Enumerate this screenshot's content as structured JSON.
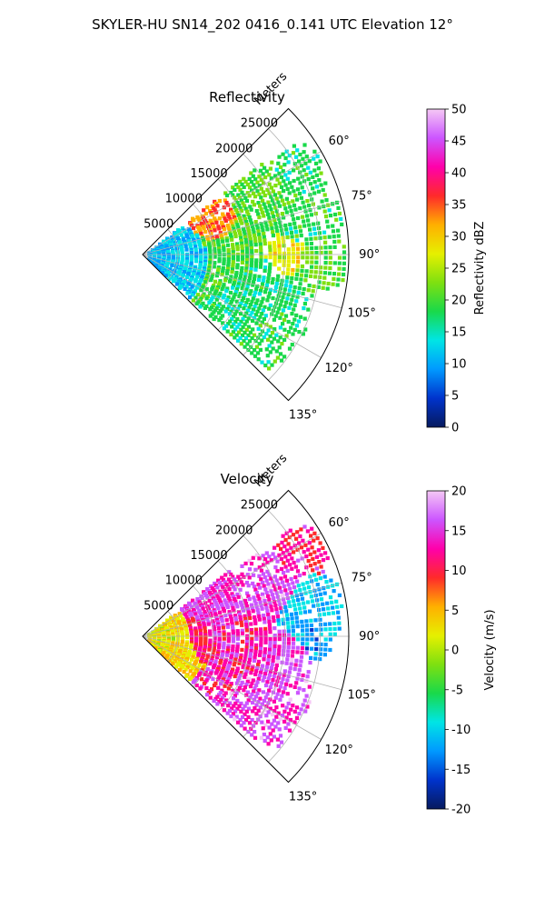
{
  "suptitle": "SKYLER-HU  SN14_202  0416_0.141 UTC Elevation 12°",
  "chart_data": [
    {
      "type": "heatmap",
      "projection": "polar-sector",
      "title": "Reflectivity",
      "range_axis_label": "Meters",
      "theta_ticks": [
        "60°",
        "75°",
        "90°",
        "105°",
        "120°",
        "135°"
      ],
      "theta_tick_values": [
        60,
        75,
        90,
        105,
        120,
        135
      ],
      "theta_range": [
        45,
        135
      ],
      "r_ticks": [
        "5000",
        "10000",
        "15000",
        "20000",
        "25000"
      ],
      "r_tick_values": [
        5000,
        10000,
        15000,
        20000,
        25000
      ],
      "r_range": [
        0,
        29000
      ],
      "grid": true,
      "colorbar": {
        "label": "Reflectivity dBZ",
        "vmin": 0,
        "vmax": 50,
        "ticks": [
          "0",
          "5",
          "10",
          "15",
          "20",
          "25",
          "30",
          "35",
          "40",
          "45",
          "50"
        ],
        "colormap": "pyart_HomeyerRainbow-like (navy–blue–cyan–green–yellow–red–magenta–pink)"
      },
      "dominant_values": "mostly 15–25 dBZ with cores of 30–38 dBZ near 70°–90°",
      "colors": [
        "#061a5e",
        "#0033cc",
        "#0099ff",
        "#00e5e5",
        "#19d94a",
        "#7fe010",
        "#e6f000",
        "#ffb000",
        "#ff2a2a",
        "#ff00aa",
        "#cc55ff",
        "#f5c8f5"
      ]
    },
    {
      "type": "heatmap",
      "projection": "polar-sector",
      "title": "Velocity",
      "range_axis_label": "Meters",
      "theta_ticks": [
        "60°",
        "75°",
        "90°",
        "105°",
        "120°",
        "135°"
      ],
      "theta_tick_values": [
        60,
        75,
        90,
        105,
        120,
        135
      ],
      "theta_range": [
        45,
        135
      ],
      "r_ticks": [
        "5000",
        "10000",
        "15000",
        "20000",
        "25000"
      ],
      "r_tick_values": [
        5000,
        10000,
        15000,
        20000,
        25000
      ],
      "r_range": [
        0,
        29000
      ],
      "grid": true,
      "colorbar": {
        "label": "Velocity (m/s)",
        "vmin": -20,
        "vmax": 20,
        "ticks": [
          "-20",
          "-15",
          "-10",
          "-5",
          "0",
          "5",
          "10",
          "15",
          "20"
        ],
        "colormap": "pyart_BuDRd-like (navy–blue–cyan–green–yellow–orange–red–magenta–pink)"
      },
      "dominant_values": "inbound -10 to -12 m/s near 70°–90°, outbound +10 to +15 m/s elsewhere",
      "colors": [
        "#061a5e",
        "#0033cc",
        "#0099ff",
        "#00e5e5",
        "#19d94a",
        "#7fe010",
        "#e6f000",
        "#ffb000",
        "#ff2a2a",
        "#ff00aa",
        "#cc55ff",
        "#f5c8f5"
      ]
    }
  ]
}
